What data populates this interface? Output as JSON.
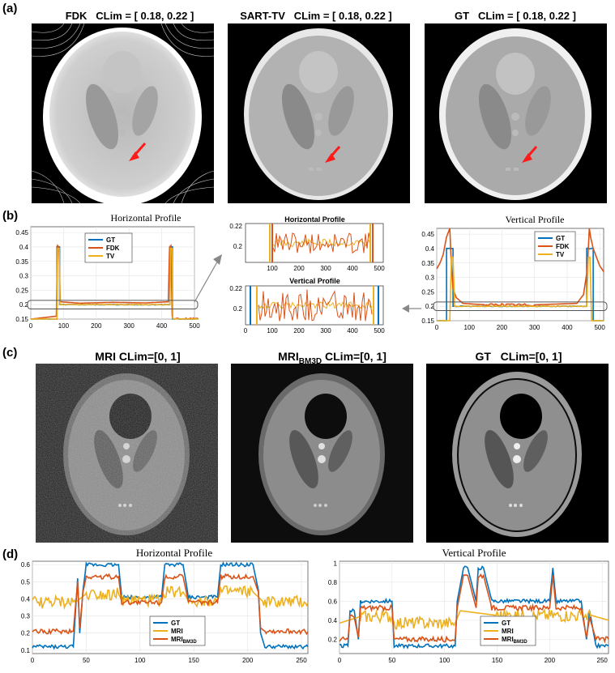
{
  "panels": {
    "a": {
      "letter": "(a)",
      "images": [
        {
          "title": "FDK",
          "clim": "CLim = [ 0.18, 0.22 ]"
        },
        {
          "title": "SART-TV",
          "clim": "CLim = [ 0.18, 0.22 ]"
        },
        {
          "title": "GT",
          "clim": "CLim = [ 0.18, 0.22 ]"
        }
      ]
    },
    "b": {
      "letter": "(b)",
      "left_title": "Horizontal Profile",
      "right_title": "Vertical Profile",
      "zoom_top_title": "Horizontal Profile",
      "zoom_bottom_title": "Vertical Profile",
      "legend": [
        "GT",
        "FDK",
        "TV"
      ]
    },
    "c": {
      "letter": "(c)",
      "images": [
        {
          "title": "MRI CLim=[0, 1]"
        },
        {
          "title_main": "MRI",
          "title_sub": "BM3D",
          "title_rest": " CLim=[0, 1]"
        },
        {
          "title": "GT   CLim=[0, 1]"
        }
      ]
    },
    "d": {
      "letter": "(d)",
      "left_title": "Horizontal Profile",
      "right_title": "Vertical Profile",
      "legend": [
        "GT",
        "MRI",
        "MRI"
      ],
      "legend_sub": "BM3D"
    }
  },
  "colors": {
    "gt": "#0072BD",
    "fdk": "#D95319",
    "tv": "#EDB120",
    "arrow": "#ff1a1a"
  },
  "chart_data": [
    {
      "type": "line",
      "id": "b-left",
      "title": "Horizontal Profile",
      "xlim": [
        0,
        500
      ],
      "ylim": [
        0.15,
        0.47
      ],
      "xticks": [
        0,
        100,
        200,
        300,
        400,
        500
      ],
      "yticks": [
        0.15,
        0.2,
        0.25,
        0.3,
        0.35,
        0.4,
        0.45
      ],
      "ytick_labels": [
        "0.15",
        "0.2",
        "0.25",
        "0.3",
        "0.35",
        "0.4",
        "0.45"
      ],
      "series": [
        {
          "name": "GT",
          "x": [
            0,
            80,
            80,
            88,
            88,
            425,
            425,
            433,
            433,
            512
          ],
          "y": [
            0.15,
            0.15,
            0.4,
            0.4,
            0.2,
            0.2,
            0.4,
            0.4,
            0.15,
            0.15
          ]
        },
        {
          "name": "FDK",
          "x": [
            0,
            78,
            82,
            86,
            90,
            150,
            250,
            350,
            420,
            424,
            428,
            432,
            436,
            512
          ],
          "y": [
            0.15,
            0.16,
            0.405,
            0.4,
            0.21,
            0.205,
            0.208,
            0.206,
            0.21,
            0.4,
            0.405,
            0.16,
            0.15,
            0.15
          ]
        },
        {
          "name": "TV",
          "x": [
            0,
            80,
            82,
            87,
            89,
            425,
            427,
            432,
            434,
            512
          ],
          "y": [
            0.15,
            0.15,
            0.395,
            0.395,
            0.2,
            0.2,
            0.395,
            0.395,
            0.15,
            0.15
          ]
        }
      ]
    },
    {
      "type": "line",
      "id": "b-zoom-h",
      "title": "Horizontal Profile",
      "xlim": [
        0,
        500
      ],
      "ylim": [
        0.18,
        0.22
      ],
      "xticks": [
        100,
        200,
        300,
        400,
        500
      ],
      "yticks": [
        0.2,
        0.22
      ],
      "ytick_labels": [
        "0.2",
        "0.22"
      ]
    },
    {
      "type": "line",
      "id": "b-zoom-v",
      "title": "Vertical Profile",
      "xlim": [
        0,
        500
      ],
      "ylim": [
        0.18,
        0.22
      ],
      "xticks": [
        0,
        100,
        200,
        300,
        400,
        500
      ],
      "yticks": [
        0.2,
        0.22
      ],
      "ytick_labels": [
        "0.2",
        "0.22"
      ]
    },
    {
      "type": "line",
      "id": "b-right",
      "title": "Vertical Profile",
      "xlim": [
        0,
        512
      ],
      "ylim": [
        0.15,
        0.47
      ],
      "xticks": [
        0,
        100,
        200,
        300,
        400,
        500
      ],
      "yticks": [
        0.15,
        0.2,
        0.25,
        0.3,
        0.35,
        0.4,
        0.45
      ],
      "ytick_labels": [
        "0.15",
        "0.2",
        "0.25",
        "0.3",
        "0.35",
        "0.4",
        "0.45"
      ],
      "series": [
        {
          "name": "GT",
          "x": [
            0,
            30,
            30,
            50,
            50,
            460,
            460,
            480,
            480,
            512
          ],
          "y": [
            0.15,
            0.15,
            0.4,
            0.4,
            0.2,
            0.2,
            0.4,
            0.4,
            0.15,
            0.15
          ]
        },
        {
          "name": "FDK",
          "x": [
            0,
            10,
            20,
            30,
            40,
            45,
            50,
            60,
            80,
            150,
            300,
            430,
            450,
            462,
            468,
            472,
            480,
            490,
            500,
            512
          ],
          "y": [
            0.33,
            0.35,
            0.38,
            0.44,
            0.47,
            0.34,
            0.26,
            0.23,
            0.21,
            0.205,
            0.205,
            0.21,
            0.24,
            0.33,
            0.47,
            0.44,
            0.4,
            0.37,
            0.34,
            0.32
          ]
        },
        {
          "name": "TV",
          "x": [
            0,
            40,
            45,
            50,
            55,
            460,
            465,
            470,
            475,
            512
          ],
          "y": [
            0.15,
            0.15,
            0.37,
            0.37,
            0.2,
            0.2,
            0.37,
            0.37,
            0.15,
            0.15
          ]
        }
      ]
    },
    {
      "type": "line",
      "id": "d-left",
      "title": "Horizontal Profile",
      "xlim": [
        0,
        256
      ],
      "ylim": [
        0.08,
        0.62
      ],
      "xticks": [
        0,
        50,
        100,
        150,
        200,
        250
      ],
      "yticks": [
        0.1,
        0.2,
        0.3,
        0.4,
        0.5,
        0.6
      ],
      "ytick_labels": [
        "0.1",
        "0.2",
        "0.3",
        "0.4",
        "0.5",
        "0.6"
      ],
      "series": [
        {
          "name": "GT",
          "x": [
            0,
            38,
            42,
            44,
            47,
            50,
            80,
            83,
            120,
            123,
            140,
            145,
            172,
            175,
            205,
            210,
            212,
            216,
            256
          ],
          "y": [
            0.12,
            0.12,
            0.52,
            0.2,
            0.45,
            0.6,
            0.6,
            0.41,
            0.41,
            0.6,
            0.6,
            0.41,
            0.41,
            0.6,
            0.6,
            0.45,
            0.2,
            0.12,
            0.12
          ]
        },
        {
          "name": "MRI",
          "x": [
            0,
            40,
            50,
            80,
            83,
            120,
            123,
            140,
            145,
            172,
            175,
            205,
            215,
            256
          ],
          "y": [
            0.38,
            0.38,
            0.43,
            0.43,
            0.39,
            0.39,
            0.44,
            0.44,
            0.39,
            0.39,
            0.44,
            0.44,
            0.38,
            0.38
          ]
        },
        {
          "name": "MRI_BM3D",
          "x": [
            0,
            38,
            42,
            44,
            47,
            50,
            80,
            83,
            120,
            123,
            140,
            145,
            172,
            175,
            205,
            210,
            212,
            216,
            256
          ],
          "y": [
            0.21,
            0.21,
            0.5,
            0.23,
            0.44,
            0.53,
            0.53,
            0.38,
            0.38,
            0.53,
            0.53,
            0.38,
            0.38,
            0.53,
            0.53,
            0.44,
            0.23,
            0.21,
            0.21
          ]
        }
      ]
    },
    {
      "type": "line",
      "id": "d-right",
      "title": "Vertical Profile",
      "xlim": [
        0,
        256
      ],
      "ylim": [
        0.05,
        1.02
      ],
      "xticks": [
        0,
        50,
        100,
        150,
        200,
        250
      ],
      "yticks": [
        0.2,
        0.4,
        0.6,
        0.8,
        1.0
      ],
      "ytick_labels": [
        "0.2",
        "0.4",
        "0.6",
        "0.8",
        "1"
      ],
      "series": [
        {
          "name": "GT",
          "x": [
            0,
            8,
            10,
            14,
            18,
            20,
            50,
            52,
            110,
            112,
            118,
            122,
            130,
            132,
            137,
            145,
            148,
            200,
            203,
            206,
            208,
            230,
            235,
            238,
            244,
            256
          ],
          "y": [
            0.13,
            0.13,
            0.5,
            0.5,
            0.2,
            0.6,
            0.6,
            0.13,
            0.13,
            0.6,
            0.95,
            0.95,
            0.6,
            0.95,
            0.95,
            0.6,
            0.6,
            0.6,
            0.95,
            0.6,
            0.6,
            0.6,
            0.2,
            0.5,
            0.13,
            0.13
          ]
        },
        {
          "name": "MRI",
          "x": [
            0,
            20,
            50,
            52,
            110,
            115,
            150,
            240,
            256
          ],
          "y": [
            0.37,
            0.44,
            0.44,
            0.37,
            0.37,
            0.5,
            0.45,
            0.45,
            0.4
          ]
        },
        {
          "name": "MRI_BM3D",
          "x": [
            0,
            8,
            10,
            14,
            18,
            20,
            50,
            52,
            110,
            112,
            118,
            122,
            130,
            132,
            137,
            145,
            148,
            200,
            203,
            206,
            208,
            230,
            235,
            238,
            244,
            256
          ],
          "y": [
            0.2,
            0.2,
            0.43,
            0.43,
            0.22,
            0.53,
            0.53,
            0.2,
            0.2,
            0.53,
            0.87,
            0.87,
            0.53,
            0.87,
            0.87,
            0.53,
            0.53,
            0.53,
            0.87,
            0.53,
            0.53,
            0.53,
            0.22,
            0.43,
            0.2,
            0.2
          ]
        }
      ]
    }
  ]
}
